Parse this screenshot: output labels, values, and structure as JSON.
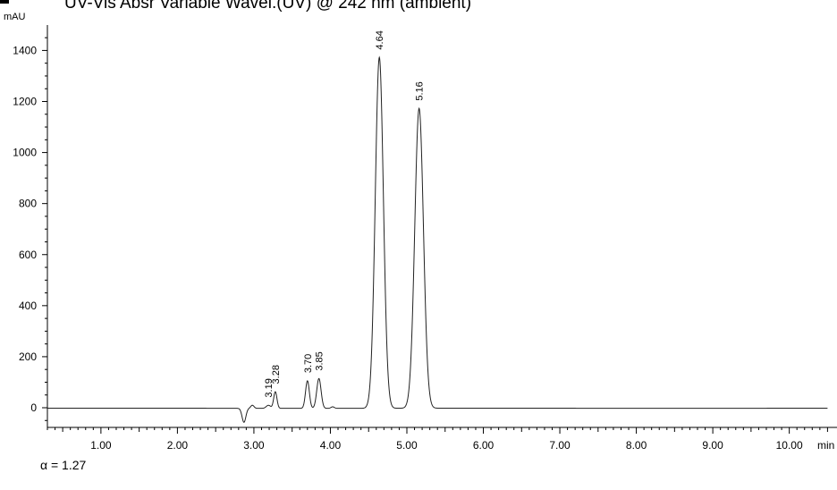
{
  "chart_data": {
    "type": "line",
    "title": "UV-Vis Absr Variable Wavel.(UV) @ 242 nm (ambient)",
    "ylabel": "mAU",
    "xlabel": "min",
    "xlim": [
      0.3,
      10.5
    ],
    "ylim": [
      -80,
      1460
    ],
    "x_ticks": [
      "1.00",
      "2.00",
      "3.00",
      "4.00",
      "5.00",
      "6.00",
      "7.00",
      "8.00",
      "9.00",
      "10.00"
    ],
    "y_ticks": [
      "0",
      "200",
      "400",
      "600",
      "800",
      "1000",
      "1200",
      "1400"
    ],
    "peaks": [
      {
        "label": "3.19",
        "rt": 3.19,
        "height": 12,
        "width": 0.04
      },
      {
        "label": "3.28",
        "rt": 3.28,
        "height": 65,
        "width": 0.03
      },
      {
        "label": "3.70",
        "rt": 3.7,
        "height": 108,
        "width": 0.035
      },
      {
        "label": "3.85",
        "rt": 3.85,
        "height": 117,
        "width": 0.04
      },
      {
        "label": "4.64",
        "rt": 4.64,
        "height": 1375,
        "width": 0.075
      },
      {
        "label": "5.16",
        "rt": 5.16,
        "height": 1175,
        "width": 0.08
      }
    ],
    "grid": false
  },
  "annotation": "α = 1.27"
}
